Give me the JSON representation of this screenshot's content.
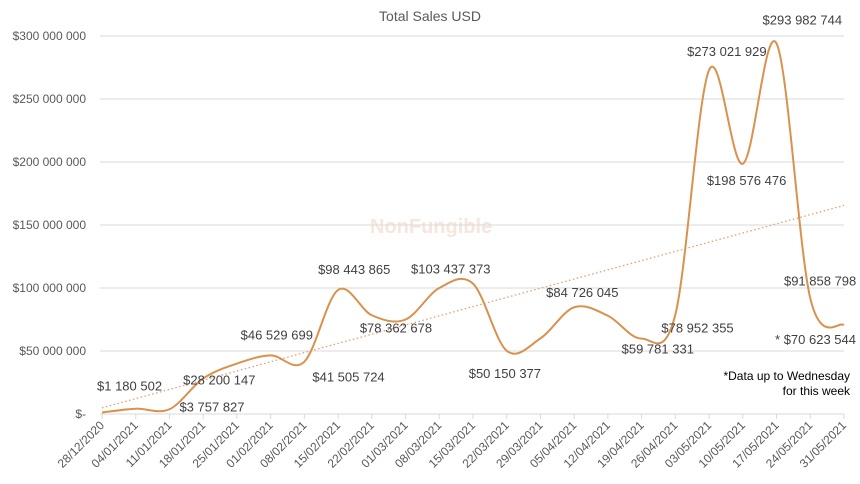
{
  "chart_data": {
    "type": "line",
    "title": "Total Sales USD",
    "xlabel": "",
    "ylabel": "",
    "ylim": [
      0,
      300000000
    ],
    "yticks": [
      {
        "value": 0,
        "label": "$-"
      },
      {
        "value": 50000000,
        "label": "$50 000 000"
      },
      {
        "value": 100000000,
        "label": "$100 000 000"
      },
      {
        "value": 150000000,
        "label": "$150 000 000"
      },
      {
        "value": 200000000,
        "label": "$200 000 000"
      },
      {
        "value": 250000000,
        "label": "$250 000 000"
      },
      {
        "value": 300000000,
        "label": "$300 000 000"
      }
    ],
    "grid": true,
    "smoothed": true,
    "trendline": "linear",
    "categories": [
      "28/12/2020",
      "04/01/2021",
      "11/01/2021",
      "18/01/2021",
      "25/01/2021",
      "01/02/2021",
      "08/02/2021",
      "15/02/2021",
      "22/02/2021",
      "01/03/2021",
      "08/03/2021",
      "15/03/2021",
      "22/03/2021",
      "29/03/2021",
      "05/04/2021",
      "12/04/2021",
      "19/04/2021",
      "26/04/2021",
      "03/05/2021",
      "10/05/2021",
      "17/05/2021",
      "24/05/2021",
      "31/05/2021"
    ],
    "series": [
      {
        "name": "Total Sales USD",
        "color": "#d9924e",
        "values": [
          1180502,
          4200000,
          3757827,
          28200147,
          40000000,
          46529699,
          41505724,
          98443865,
          78362678,
          75000000,
          100000000,
          103437373,
          50150377,
          60000000,
          84726045,
          78000000,
          59781331,
          78952355,
          273021929,
          198576476,
          293982744,
          91858798,
          70623544
        ]
      }
    ],
    "data_labels": [
      {
        "index": 0,
        "text": "$1 180 502"
      },
      {
        "index": 2,
        "text": "$3 757 827"
      },
      {
        "index": 3,
        "text": "$28 200 147"
      },
      {
        "index": 5,
        "text": "$46 529 699"
      },
      {
        "index": 6,
        "text": "$41 505 724"
      },
      {
        "index": 7,
        "text": "$98 443 865"
      },
      {
        "index": 8,
        "text": "$78 362 678"
      },
      {
        "index": 11,
        "text": "$103 437 373"
      },
      {
        "index": 12,
        "text": "$50 150 377"
      },
      {
        "index": 14,
        "text": "$84 726 045"
      },
      {
        "index": 16,
        "text": "$59 781 331"
      },
      {
        "index": 17,
        "text": "$78 952 355"
      },
      {
        "index": 18,
        "text": "$273 021 929"
      },
      {
        "index": 19,
        "text": "$198 576 476"
      },
      {
        "index": 20,
        "text": "$293 982 744"
      },
      {
        "index": 21,
        "text": "$91 858 798"
      },
      {
        "index": 22,
        "text": "* $70 623 544"
      }
    ],
    "note_lines": [
      "*Data up to Wednesday",
      "for this week"
    ],
    "watermark": "NonFungible",
    "trend_color": "#e0a070",
    "grid_color": "#d9d9d9"
  }
}
